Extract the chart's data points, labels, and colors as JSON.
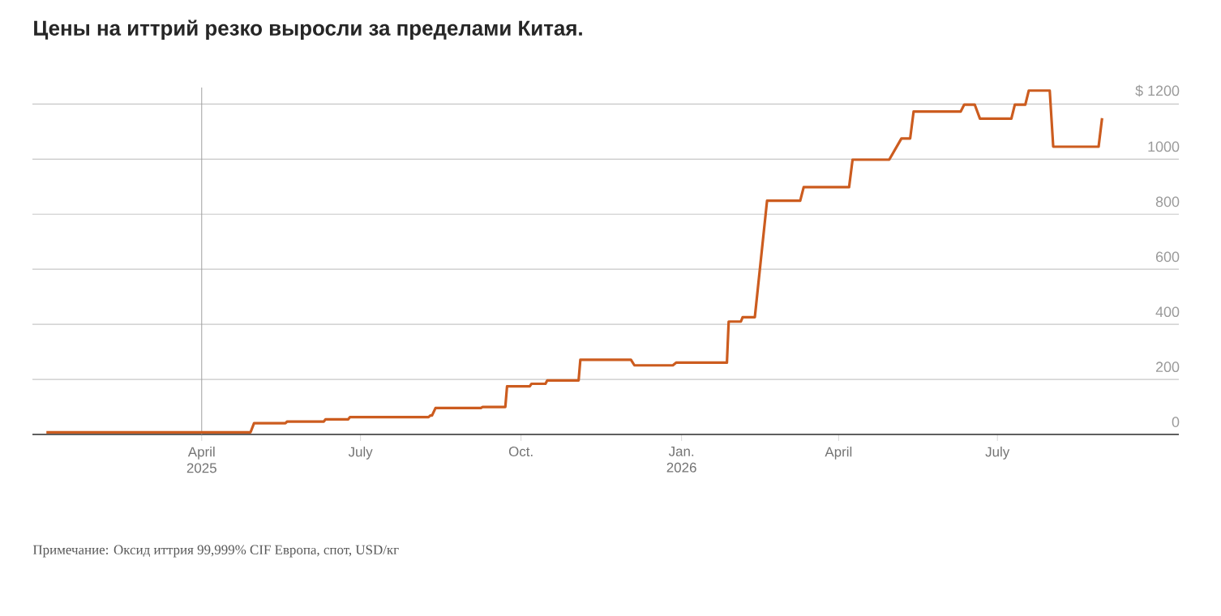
{
  "chart_data": {
    "type": "line",
    "title": "Цены на иттрий резко выросли за пределами Китая.",
    "annotations": [
      "Примечание: Оксид иттрия 99,999% CIF Европа, спот, USD/кг"
    ],
    "x": [
      "2025-01-02",
      "2025-04-29",
      "2025-05-01",
      "2025-05-19",
      "2025-05-20",
      "2025-06-10",
      "2025-06-11",
      "2025-06-24",
      "2025-06-25",
      "2025-08-09",
      "2025-08-10",
      "2025-08-11",
      "2025-08-13",
      "2025-09-08",
      "2025-09-09",
      "2025-09-22",
      "2025-09-23",
      "2025-10-06",
      "2025-10-07",
      "2025-10-15",
      "2025-10-16",
      "2025-11-03",
      "2025-11-04",
      "2025-12-03",
      "2025-12-05",
      "2025-12-27",
      "2025-12-29",
      "2026-01-27",
      "2026-01-28",
      "2026-02-04",
      "2026-02-05",
      "2026-02-12",
      "2026-02-19",
      "2026-03-10",
      "2026-03-12",
      "2026-04-07",
      "2026-04-09",
      "2026-04-30",
      "2026-05-07",
      "2026-05-12",
      "2026-05-14",
      "2026-06-10",
      "2026-06-12",
      "2026-06-18",
      "2026-06-21",
      "2026-07-09",
      "2026-07-11",
      "2026-07-17",
      "2026-07-19",
      "2026-07-31",
      "2026-08-02",
      "2026-08-28",
      "2026-08-30"
    ],
    "series": [
      {
        "color": "#cc5c1f",
        "values": [
          8,
          8,
          41,
          41,
          47,
          47,
          55,
          55,
          63,
          63,
          69,
          69,
          96,
          96,
          100,
          100,
          175,
          175,
          184,
          184,
          196,
          196,
          271,
          271,
          251,
          251,
          261,
          261,
          410,
          410,
          426,
          426,
          849,
          849,
          898,
          898,
          998,
          998,
          1075,
          1075,
          1173,
          1173,
          1198,
          1198,
          1147,
          1147,
          1198,
          1198,
          1249,
          1249,
          1045,
          1045,
          1149
        ]
      }
    ],
    "xlim": [
      "2024-12-25",
      "2026-10-13"
    ],
    "xticks": [
      {
        "value": "2025-04-01",
        "label": "April 2025"
      },
      {
        "value": "2025-07-01",
        "label": "July"
      },
      {
        "value": "2025-10-01",
        "label": "Oct."
      },
      {
        "value": "2026-01-01",
        "label": "Jan. 2026"
      },
      {
        "value": "2026-04-01",
        "label": "April"
      },
      {
        "value": "2026-07-01",
        "label": "July"
      }
    ],
    "ylim": [
      0,
      1260
    ],
    "yticks": [
      0,
      200,
      400,
      600,
      800,
      1000,
      {
        "value": 1200,
        "label": "$ 1200"
      }
    ],
    "grid": "y",
    "ref_lines": [
      {
        "axis": "x",
        "value": "2025-04-01",
        "color": "#a0a0a0"
      }
    ]
  }
}
